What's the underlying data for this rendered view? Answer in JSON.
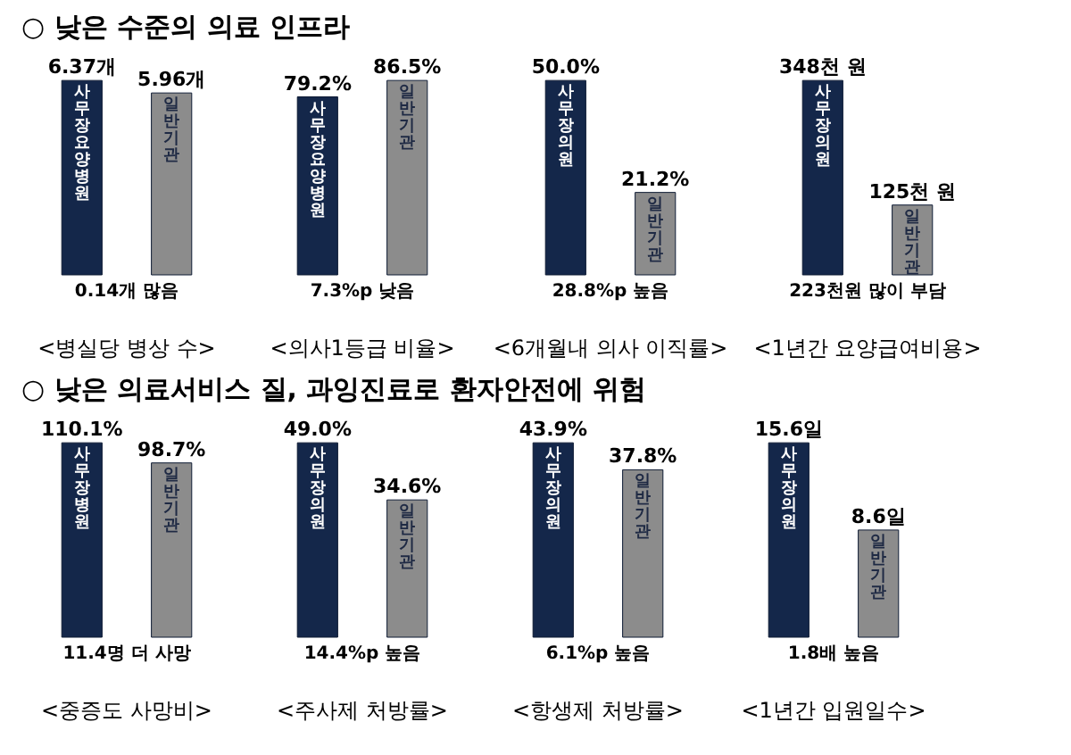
{
  "chart_data": [
    {
      "type": "other",
      "title": "○ 낮은 수준의 의료 인프라"
    },
    {
      "type": "bar",
      "title": "<병실당 병상 수>",
      "categories": [
        "사무장요양병원",
        "일반기관"
      ],
      "values": [
        6.37,
        5.96
      ],
      "value_labels": [
        "6.37개",
        "5.96개"
      ],
      "colors": [
        "#14274a",
        "#8c8c8c"
      ],
      "annotations": [
        "0.14개 많음"
      ]
    },
    {
      "type": "bar",
      "title": "<의사1등급 비율>",
      "categories": [
        "사무장요양병원",
        "일반기관"
      ],
      "values": [
        79.2,
        86.5
      ],
      "value_labels": [
        "79.2%",
        "86.5%"
      ],
      "colors": [
        "#14274a",
        "#8c8c8c"
      ],
      "annotations": [
        "7.3%p 낮음"
      ]
    },
    {
      "type": "bar",
      "title": "<6개월내 의사 이직률>",
      "categories": [
        "사무장의원",
        "일반기관"
      ],
      "values": [
        50.0,
        21.2
      ],
      "value_labels": [
        "50.0%",
        "21.2%"
      ],
      "colors": [
        "#14274a",
        "#8c8c8c"
      ],
      "annotations": [
        "28.8%p 높음"
      ]
    },
    {
      "type": "bar",
      "title": "<1년간 요양급여비용>",
      "categories": [
        "사무장의원",
        "일반기관"
      ],
      "values": [
        348,
        125
      ],
      "value_labels": [
        "348천 원",
        "125천 원"
      ],
      "colors": [
        "#14274a",
        "#8c8c8c"
      ],
      "annotations": [
        "223천원 많이 부담"
      ]
    },
    {
      "type": "other",
      "title": "○ 낮은 의료서비스 질, 과잉진료로 환자안전에 위험"
    },
    {
      "type": "bar",
      "title": "<중증도 사망비>",
      "categories": [
        "사무장병원",
        "일반기관"
      ],
      "values": [
        110.1,
        98.7
      ],
      "value_labels": [
        "110.1%",
        "98.7%"
      ],
      "colors": [
        "#14274a",
        "#8c8c8c"
      ],
      "annotations": [
        "11.4명 더 사망"
      ]
    },
    {
      "type": "bar",
      "title": "<주사제 처방률>",
      "categories": [
        "사무장의원",
        "일반기관"
      ],
      "values": [
        49.0,
        34.6
      ],
      "value_labels": [
        "49.0%",
        "34.6%"
      ],
      "colors": [
        "#14274a",
        "#8c8c8c"
      ],
      "annotations": [
        "14.4%p 높음"
      ]
    },
    {
      "type": "bar",
      "title": "<항생제 처방률>",
      "categories": [
        "사무장의원",
        "일반기관"
      ],
      "values": [
        43.9,
        37.8
      ],
      "value_labels": [
        "43.9%",
        "37.8%"
      ],
      "colors": [
        "#14274a",
        "#8c8c8c"
      ],
      "annotations": [
        "6.1%p 높음"
      ]
    },
    {
      "type": "bar",
      "title": "<1년간 입원일수>",
      "categories": [
        "사무장의원",
        "일반기관"
      ],
      "values": [
        15.6,
        8.6
      ],
      "value_labels": [
        "15.6일",
        "8.6일"
      ],
      "colors": [
        "#14274a",
        "#8c8c8c"
      ],
      "annotations": [
        "1.8배 높음"
      ]
    }
  ]
}
